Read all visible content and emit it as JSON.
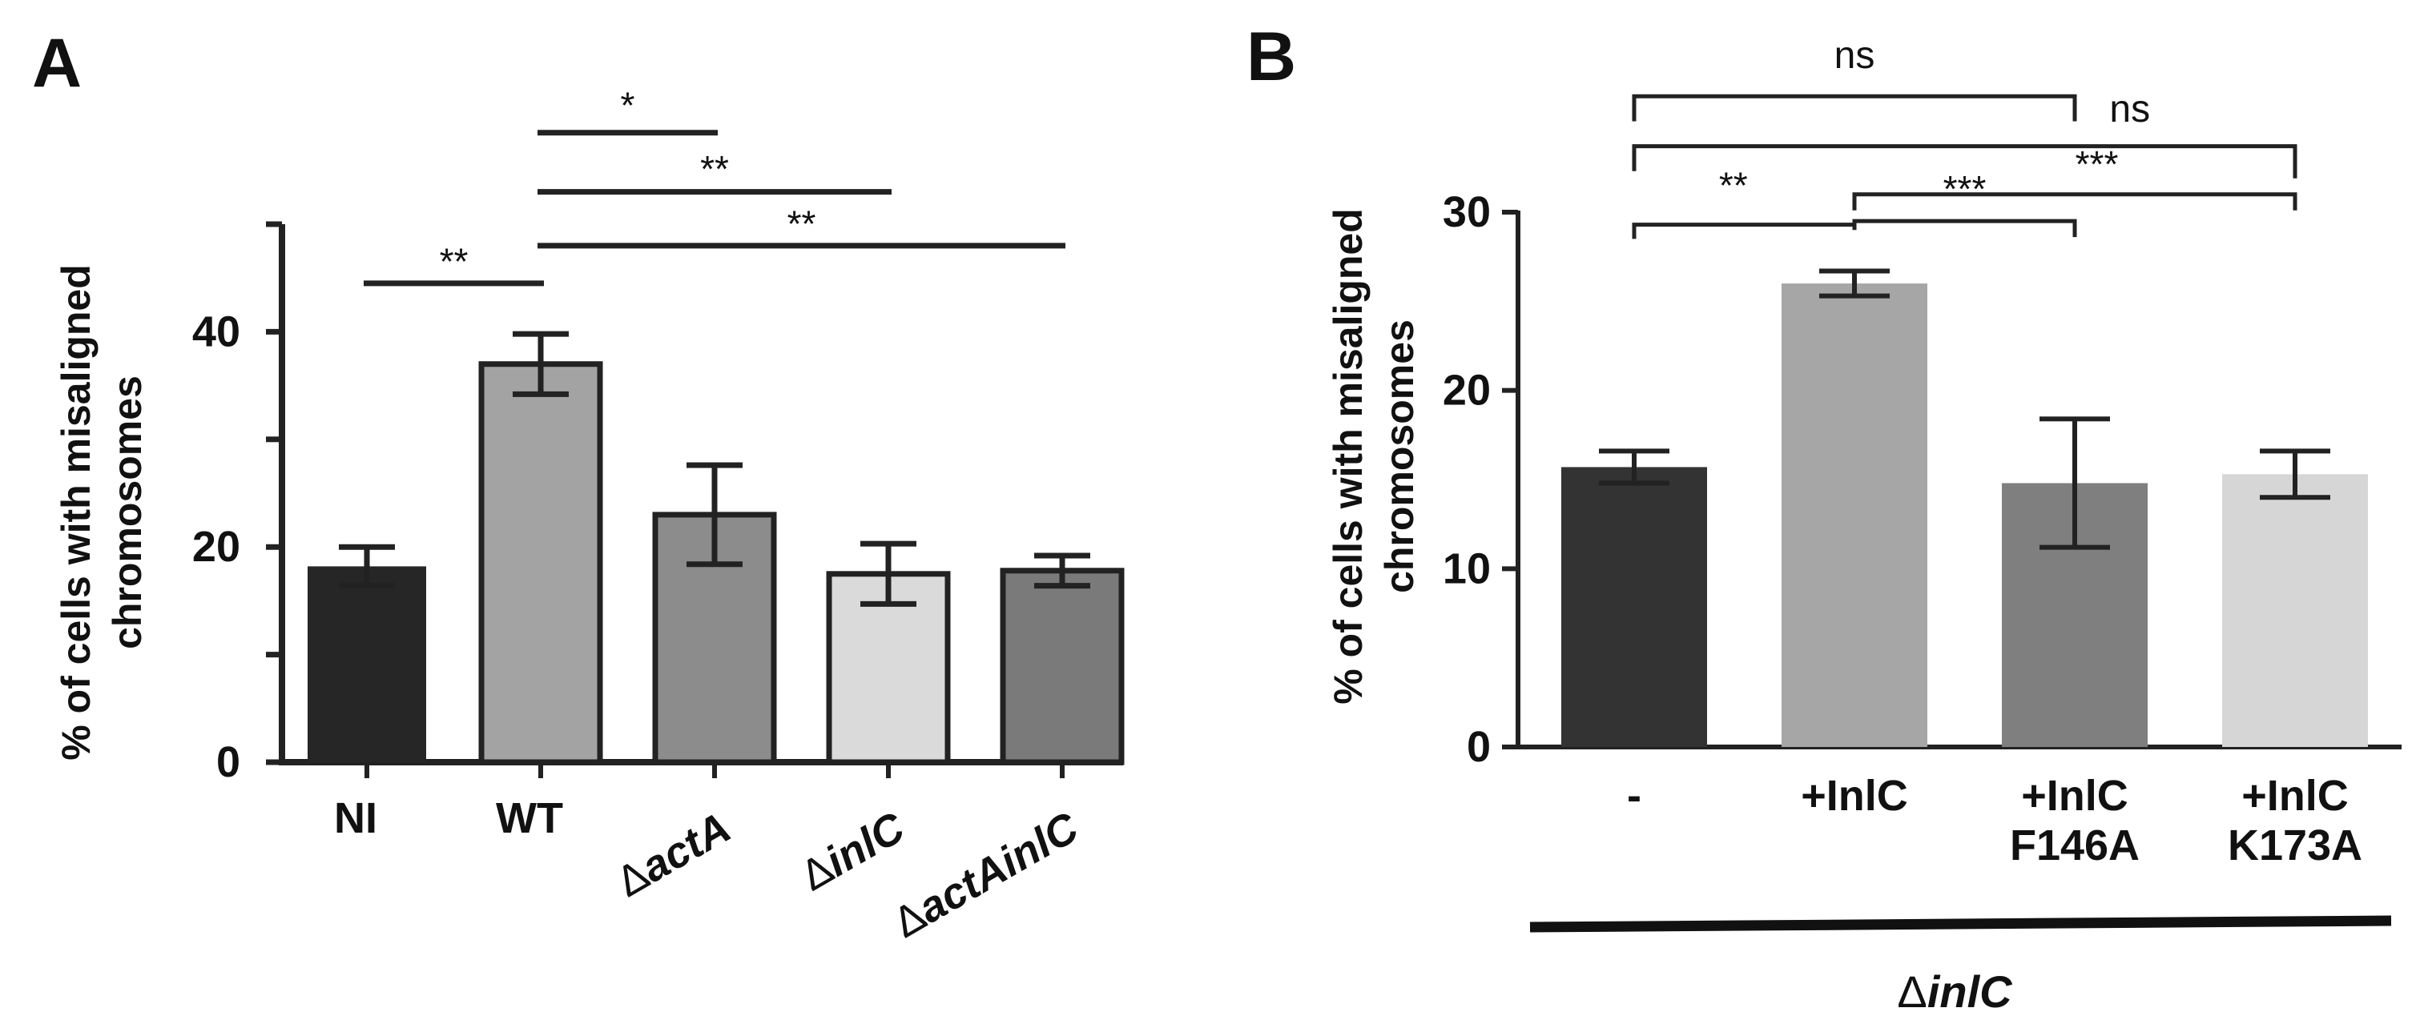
{
  "figure": {
    "label_a": "A",
    "label_b": "B"
  },
  "chart_data": [
    {
      "panel": "A",
      "type": "bar",
      "ylabel": [
        "% of cells with misaligned",
        "chromosomes"
      ],
      "ylim": [
        0,
        50
      ],
      "yticks": [
        0,
        20,
        40
      ],
      "categories": [
        "NI",
        "WT",
        "ΔactA",
        "ΔinlC",
        "ΔactAinlC"
      ],
      "category_prefix": [
        "",
        "",
        "Δ",
        "Δ",
        "Δ"
      ],
      "category_text": [
        "NI",
        "WT",
        "actA",
        "inlC",
        "actAinlC"
      ],
      "category_italic": [
        false,
        false,
        true,
        true,
        true
      ],
      "category_rotated": [
        false,
        false,
        true,
        true,
        true
      ],
      "values": [
        18.2,
        37.0,
        23.0,
        17.5,
        17.8
      ],
      "errors": [
        1.8,
        2.8,
        4.6,
        2.8,
        1.4
      ],
      "colors": [
        "#262626",
        "#a3a3a3",
        "#8c8c8c",
        "#dadada",
        "#7a7a7a"
      ],
      "significance": [
        {
          "from": 0,
          "to": 1,
          "y": 44.5,
          "label": "**",
          "label_y": 46.7
        },
        {
          "from": 1,
          "to": 2,
          "y": 58.5,
          "label": "*",
          "label_y": 61.2
        },
        {
          "from": 1,
          "to": 3,
          "y": 53.0,
          "label": "**",
          "label_y": 55.3
        },
        {
          "from": 1,
          "to": 4,
          "y": 48.0,
          "label": "**",
          "label_y": 50.2
        }
      ]
    },
    {
      "panel": "B",
      "type": "bar",
      "ylabel": [
        "% of cells with misaligned",
        "chromosomes"
      ],
      "ylim": [
        0,
        30
      ],
      "yticks": [
        0,
        10,
        20,
        30
      ],
      "categories": [
        "-",
        "+InlC",
        "+InlC F146A",
        "+InlC K173A"
      ],
      "category_lines": [
        [
          "-"
        ],
        [
          "+InlC"
        ],
        [
          "+InlC",
          "F146A"
        ],
        [
          "+InlC",
          "K173A"
        ]
      ],
      "values": [
        15.7,
        26.0,
        14.8,
        15.3
      ],
      "errors": [
        0.9,
        0.7,
        3.6,
        1.3
      ],
      "colors": [
        "#333333",
        "#a6a6a6",
        "#7f7f7f",
        "#d6d6d6"
      ],
      "significance": [
        {
          "from": 0,
          "to": 1,
          "y": 29.3,
          "drop": [
            0.8,
            0.3
          ],
          "label": "**",
          "label_y": 31.5,
          "label_x": 0.45
        },
        {
          "from": 1,
          "to": 2,
          "y": 29.5,
          "drop": [
            0.3,
            0.9
          ],
          "label": "***",
          "label_y": 31.3,
          "label_x": 1.5
        },
        {
          "from": 1,
          "to": 3,
          "y": 31.0,
          "drop": [
            0.9,
            0.9
          ],
          "label": "***",
          "label_y": 32.7,
          "label_x": 2.1
        },
        {
          "from": 0,
          "to": 2,
          "y": 36.5,
          "drop": [
            1.4,
            1.4
          ],
          "label": "ns",
          "label_y": 38.8,
          "label_x": 1.0
        },
        {
          "from": 0,
          "to": 3,
          "y": 33.7,
          "drop": [
            1.4,
            1.8
          ],
          "label": "ns",
          "label_y": 35.8,
          "label_x": 2.25
        }
      ],
      "group_label_prefix": "Δ",
      "group_label_text": "inlC"
    }
  ]
}
